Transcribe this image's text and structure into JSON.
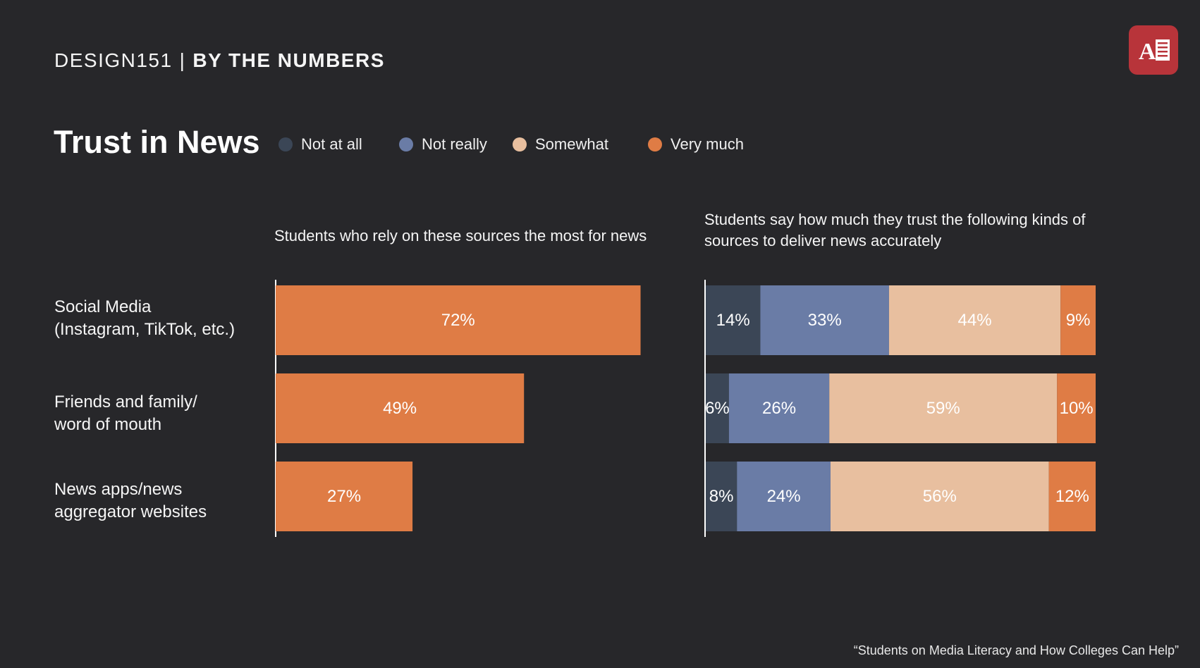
{
  "header": {
    "brand": "DESIGN151",
    "separator": "|",
    "section": "BY THE NUMBERS"
  },
  "logo": {
    "icon": "newspaper-logo-icon",
    "color": "#b8343a"
  },
  "title": "Trust in News",
  "legend": [
    {
      "label": "Not at all",
      "color": "#3b4656"
    },
    {
      "label": "Not really",
      "color": "#6a7ca6"
    },
    {
      "label": "Somewhat",
      "color": "#e8bf9f"
    },
    {
      "label": "Very much",
      "color": "#df7c45"
    }
  ],
  "rows": [
    {
      "label_line1": "Social Media",
      "label_line2": "(Instagram, TikTok, etc.)"
    },
    {
      "label_line1": "Friends and family/",
      "label_line2": "word of mouth"
    },
    {
      "label_line1": "News apps/news",
      "label_line2": "aggregator websites"
    }
  ],
  "source": "“Students on Media Literacy and How Colleges Can Help”",
  "chart_data": [
    {
      "type": "bar",
      "orientation": "horizontal",
      "title": "Students who rely on these sources the most for news",
      "categories": [
        "Social Media (Instagram, TikTok, etc.)",
        "Friends and family/word of mouth",
        "News apps/news aggregator websites"
      ],
      "values": [
        72,
        49,
        27
      ],
      "labels": [
        "72%",
        "49%",
        "27%"
      ],
      "color": "#df7c45",
      "xlim": [
        0,
        100
      ]
    },
    {
      "type": "bar",
      "orientation": "horizontal",
      "stacked": true,
      "title_line1": "Students say how much they trust the following kinds of",
      "title_line2": "sources to deliver news accurately",
      "categories": [
        "Social Media (Instagram, TikTok, etc.)",
        "Friends and family/word of mouth",
        "News apps/news aggregator websites"
      ],
      "series": [
        {
          "name": "Not at all",
          "color": "#3b4656",
          "values": [
            14,
            6,
            8
          ],
          "labels": [
            "14%",
            "6%",
            "8%"
          ]
        },
        {
          "name": "Not really",
          "color": "#6a7ca6",
          "values": [
            33,
            26,
            24
          ],
          "labels": [
            "33%",
            "26%",
            "24%"
          ]
        },
        {
          "name": "Somewhat",
          "color": "#e8bf9f",
          "values": [
            44,
            59,
            56
          ],
          "labels": [
            "44%",
            "59%",
            "56%"
          ]
        },
        {
          "name": "Very much",
          "color": "#df7c45",
          "values": [
            9,
            10,
            12
          ],
          "labels": [
            "9%",
            "10%",
            "12%"
          ]
        }
      ]
    }
  ]
}
